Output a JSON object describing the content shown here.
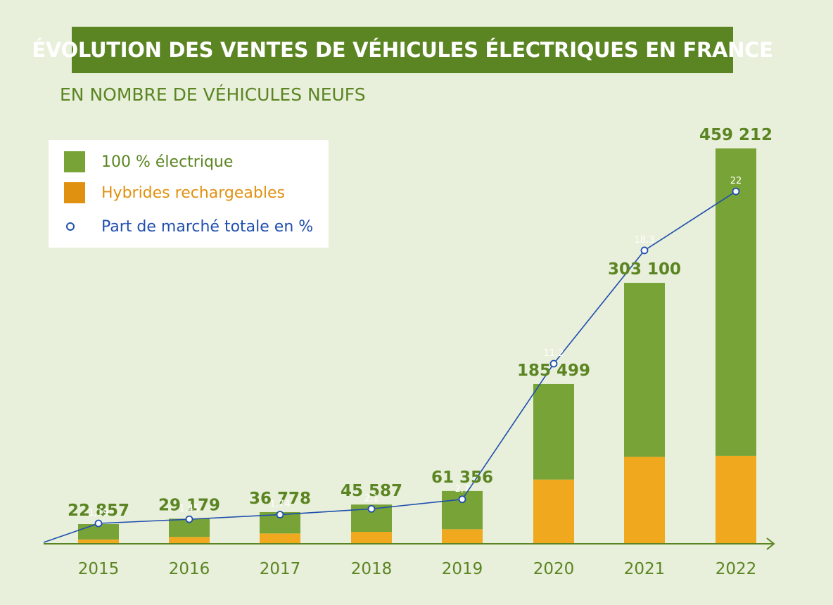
{
  "title": "ÉVOLUTION DES VENTES DE VÉHICULES ÉLECTRIQUES EN FRANCE",
  "subtitle": "EN NOMBRE DE VÉHICULES NEUFS",
  "colors": {
    "background": "#e8efda",
    "banner": "#5b8522",
    "electric": "#78a336",
    "hybrid": "#f0a91e",
    "hybrid_legend": "#e0910f",
    "market_share": "#1f4fae",
    "label_green": "#5b8522",
    "axis": "#5b8522"
  },
  "legend": {
    "electric": "100 % électrique",
    "hybrid": "Hybrides rechargeables",
    "share": "Part de marché totale en %"
  },
  "chart_data": {
    "type": "bar",
    "stacked": true,
    "categories": [
      "2015",
      "2016",
      "2017",
      "2018",
      "2019",
      "2020",
      "2021",
      "2022"
    ],
    "totals": [
      "22 857",
      "29 179",
      "36 778",
      "45 587",
      "61 356",
      "185 499",
      "303 100",
      "459 212"
    ],
    "series": [
      {
        "name": "Hybrides rechargeables",
        "values": [
          5000,
          7900,
          12000,
          13900,
          16900,
          74600,
          101000,
          102200
        ]
      },
      {
        "name": "100 % électrique",
        "values": [
          17857,
          21279,
          24778,
          31687,
          44456,
          110899,
          202100,
          357012
        ]
      }
    ],
    "line": {
      "name": "Part de marché totale en %",
      "values": [
        1.19,
        1.45,
        1.74,
        2.1,
        2.7,
        11.2,
        18.3,
        22
      ],
      "labels": [
        "1,19",
        "1,45",
        "1,74",
        "2,1",
        "2,7",
        "11,2",
        "18,3",
        "22"
      ]
    },
    "ylim": [
      0,
      459212
    ],
    "y2lim": [
      0,
      22
    ],
    "legend_position": "top-left",
    "grid": false
  }
}
